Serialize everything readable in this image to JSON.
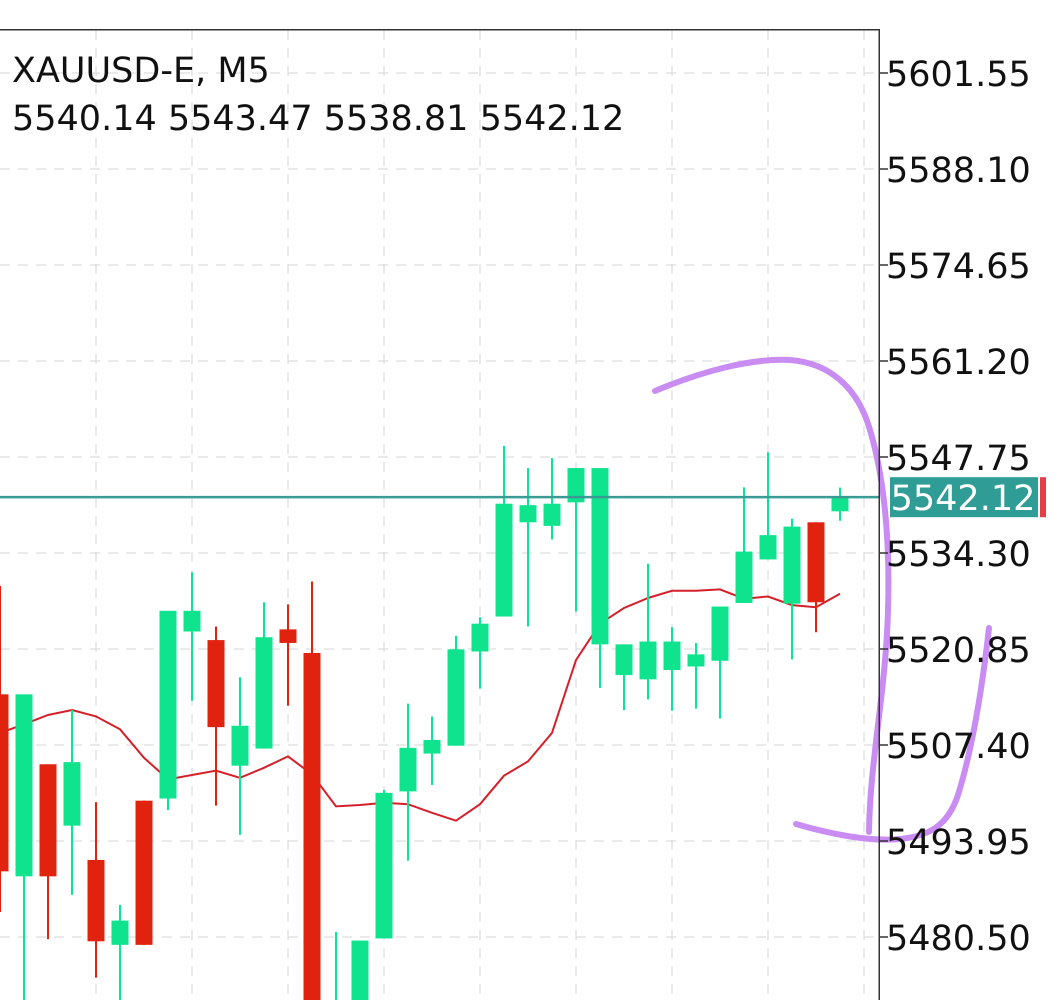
{
  "chart_data": {
    "type": "candlestick",
    "symbol": "XAUUSD-E",
    "timeframe": "M5",
    "title": "XAUUSD-E, M5",
    "ohlc_readout": {
      "open": "5540.14",
      "high": "5543.47",
      "low": "5538.81",
      "close": "5542.12",
      "text": "5540.14 5543.47 5538.81 5542.12"
    },
    "y_ticks": [
      "5601.55",
      "5588.10",
      "5574.65",
      "5561.20",
      "5547.75",
      "5534.30",
      "5520.85",
      "5507.40",
      "5493.95",
      "5480.50"
    ],
    "ylim": [
      5470.5,
      5606.5
    ],
    "current_price": "5542.12",
    "grid": true,
    "candles": [
      {
        "o": 5514.5,
        "h": 5529.7,
        "l": 5484.0,
        "c": 5489.7
      },
      {
        "o": 5489.0,
        "h": 5514.5,
        "l": 5470.5,
        "c": 5514.5
      },
      {
        "o": 5504.7,
        "h": 5504.7,
        "l": 5480.2,
        "c": 5489.0
      },
      {
        "o": 5496.1,
        "h": 5512.3,
        "l": 5486.4,
        "c": 5505.0
      },
      {
        "o": 5491.3,
        "h": 5499.4,
        "l": 5474.8,
        "c": 5479.9
      },
      {
        "o": 5479.4,
        "h": 5485.0,
        "l": 5470.5,
        "c": 5482.8
      },
      {
        "o": 5499.6,
        "h": 5499.6,
        "l": 5479.4,
        "c": 5479.4
      },
      {
        "o": 5499.9,
        "h": 5526.2,
        "l": 5498.3,
        "c": 5526.2
      },
      {
        "o": 5523.3,
        "h": 5531.6,
        "l": 5513.6,
        "c": 5526.2
      },
      {
        "o": 5522.1,
        "h": 5524.0,
        "l": 5498.9,
        "c": 5509.9
      },
      {
        "o": 5504.5,
        "h": 5516.9,
        "l": 5494.8,
        "c": 5510.1
      },
      {
        "o": 5506.9,
        "h": 5527.4,
        "l": 5506.9,
        "c": 5522.5
      },
      {
        "o": 5523.6,
        "h": 5527.1,
        "l": 5512.9,
        "c": 5521.7
      },
      {
        "o": 5520.3,
        "h": 5530.3,
        "l": 5470.5,
        "c": 5470.5
      },
      {
        "o": 5470.5,
        "h": 5481.2,
        "l": 5470.5,
        "c": 5470.5
      },
      {
        "o": 5470.5,
        "h": 5479.4,
        "l": 5470.5,
        "c": 5480.0
      },
      {
        "o": 5480.3,
        "h": 5501.1,
        "l": 5480.3,
        "c": 5500.7
      },
      {
        "o": 5500.9,
        "h": 5513.2,
        "l": 5491.2,
        "c": 5507.0
      },
      {
        "o": 5506.2,
        "h": 5511.4,
        "l": 5501.8,
        "c": 5508.1
      },
      {
        "o": 5507.3,
        "h": 5522.7,
        "l": 5507.3,
        "c": 5520.8
      },
      {
        "o": 5520.5,
        "h": 5525.3,
        "l": 5515.3,
        "c": 5524.4
      },
      {
        "o": 5525.4,
        "h": 5549.3,
        "l": 5525.4,
        "c": 5541.2
      },
      {
        "o": 5538.6,
        "h": 5546.2,
        "l": 5524.0,
        "c": 5541.0
      },
      {
        "o": 5538.1,
        "h": 5547.6,
        "l": 5536.2,
        "c": 5541.2
      },
      {
        "o": 5541.4,
        "h": 5546.2,
        "l": 5526.1,
        "c": 5546.2
      },
      {
        "o": 5521.5,
        "h": 5546.2,
        "l": 5515.4,
        "c": 5546.2
      },
      {
        "o": 5517.2,
        "h": 5521.5,
        "l": 5512.3,
        "c": 5521.5
      },
      {
        "o": 5516.6,
        "h": 5532.8,
        "l": 5513.8,
        "c": 5521.9
      },
      {
        "o": 5517.9,
        "h": 5523.9,
        "l": 5512.2,
        "c": 5521.9
      },
      {
        "o": 5518.4,
        "h": 5521.7,
        "l": 5512.5,
        "c": 5520.1
      },
      {
        "o": 5519.2,
        "h": 5526.8,
        "l": 5511.1,
        "c": 5526.8
      },
      {
        "o": 5527.3,
        "h": 5543.5,
        "l": 5527.3,
        "c": 5534.5
      },
      {
        "o": 5533.4,
        "h": 5548.4,
        "l": 5533.4,
        "c": 5536.8
      },
      {
        "o": 5527.2,
        "h": 5539.1,
        "l": 5519.4,
        "c": 5538.0
      },
      {
        "o": 5538.6,
        "h": 5538.6,
        "l": 5523.2,
        "c": 5527.4
      },
      {
        "o": 5540.14,
        "h": 5543.47,
        "l": 5538.81,
        "c": 5542.12
      }
    ],
    "moving_average": [
      5509.1,
      5510.3,
      5511.6,
      5512.3,
      5511.4,
      5509.6,
      5505.6,
      5502.6,
      5503.2,
      5503.8,
      5502.8,
      5504.2,
      5505.8,
      5503.3,
      5498.8,
      5499.0,
      5499.3,
      5499.1,
      5497.9,
      5496.8,
      5499.1,
      5503.1,
      5505.1,
      5509.1,
      5519.3,
      5524.4,
      5526.6,
      5528.0,
      5529.0,
      5529.0,
      5529.2,
      5527.9,
      5528.2,
      5527.0,
      5526.7,
      5528.6
    ],
    "colors": {
      "bull": "#0fe38e",
      "bear": "#e0230f",
      "moving_average": "#d4202a",
      "price_line": "#3a9b96",
      "price_tag": "#2f9d95",
      "grid": "#d6d6d6",
      "annotation": "#c98cf2"
    }
  }
}
